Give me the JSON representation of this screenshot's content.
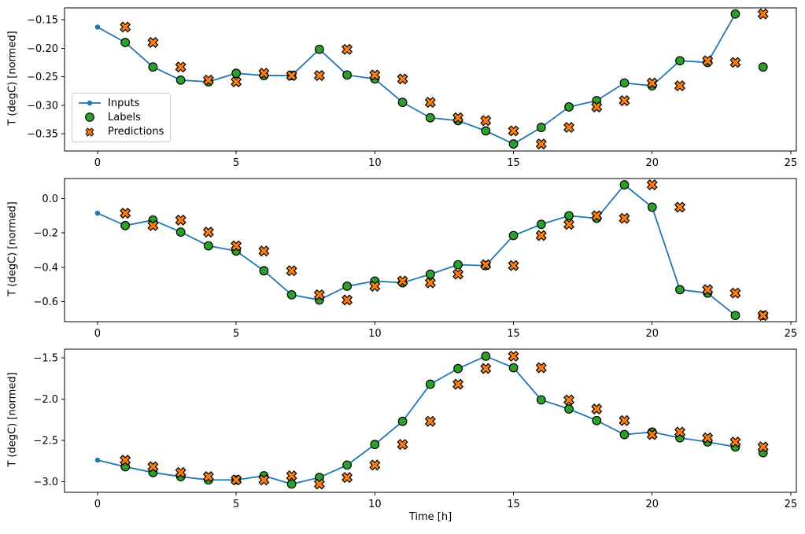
{
  "figure": {
    "background": "#ffffff",
    "xlabel": "Time [h]",
    "xlim": [
      -1.19,
      25.2
    ],
    "x_ticks": [
      0,
      5,
      10,
      15,
      20,
      25
    ],
    "x_tick_labels": [
      "0",
      "5",
      "10",
      "15",
      "20",
      "25"
    ],
    "colors": {
      "inputs": "#1f77b4",
      "labels": "#2ca02c",
      "predictions": "#ff7f0e",
      "marker_edge": "#000000",
      "spine": "#000000",
      "legend_border": "#cccccc"
    },
    "legend": {
      "entries": [
        {
          "label": "Inputs",
          "marker": "line-dot",
          "color": "#1f77b4"
        },
        {
          "label": "Labels",
          "marker": "circle",
          "color": "#2ca02c"
        },
        {
          "label": "Predictions",
          "marker": "x",
          "color": "#ff7f0e"
        }
      ]
    }
  },
  "chart_data": [
    {
      "type": "line",
      "ylabel": "T (degC) [normed]",
      "ylim": [
        -0.3803,
        -0.1293
      ],
      "yticks": [
        -0.15,
        -0.2,
        -0.25,
        -0.3,
        -0.35
      ],
      "ytick_labels": [
        "−0.15",
        "−0.20",
        "−0.25",
        "−0.30",
        "−0.35"
      ],
      "series": [
        {
          "name": "Inputs",
          "kind": "line",
          "marker": "dot",
          "color": "#1f77b4",
          "x": [
            0,
            1,
            2,
            3,
            4,
            5,
            6,
            7,
            8,
            9,
            10,
            11,
            12,
            13,
            14,
            15,
            16,
            17,
            18,
            19,
            20,
            21,
            22,
            23
          ],
          "y": [
            -0.163,
            -0.19,
            -0.233,
            -0.256,
            -0.259,
            -0.244,
            -0.248,
            -0.248,
            -0.202,
            -0.247,
            -0.254,
            -0.295,
            -0.322,
            -0.327,
            -0.345,
            -0.368,
            -0.339,
            -0.303,
            -0.292,
            -0.261,
            -0.266,
            -0.222,
            -0.225,
            -0.14
          ]
        },
        {
          "name": "Labels",
          "kind": "scatter",
          "marker": "circle",
          "color": "#2ca02c",
          "x": [
            1,
            2,
            3,
            4,
            5,
            6,
            7,
            8,
            9,
            10,
            11,
            12,
            13,
            14,
            15,
            16,
            17,
            18,
            19,
            20,
            21,
            22,
            23,
            24
          ],
          "y": [
            -0.19,
            -0.233,
            -0.256,
            -0.259,
            -0.244,
            -0.248,
            -0.248,
            -0.202,
            -0.247,
            -0.254,
            -0.295,
            -0.322,
            -0.327,
            -0.345,
            -0.368,
            -0.339,
            -0.303,
            -0.292,
            -0.261,
            -0.266,
            -0.222,
            -0.225,
            -0.14,
            -0.233
          ]
        },
        {
          "name": "Predictions",
          "kind": "scatter",
          "marker": "X",
          "color": "#ff7f0e",
          "x": [
            1,
            2,
            3,
            4,
            5,
            6,
            7,
            8,
            9,
            10,
            11,
            12,
            13,
            14,
            15,
            16,
            17,
            18,
            19,
            20,
            21,
            22,
            23,
            24
          ],
          "y": [
            -0.163,
            -0.19,
            -0.233,
            -0.256,
            -0.259,
            -0.244,
            -0.248,
            -0.248,
            -0.202,
            -0.247,
            -0.254,
            -0.295,
            -0.322,
            -0.327,
            -0.345,
            -0.368,
            -0.339,
            -0.303,
            -0.292,
            -0.261,
            -0.266,
            -0.222,
            -0.225,
            -0.14
          ]
        }
      ]
    },
    {
      "type": "line",
      "ylabel": "T (degC) [normed]",
      "ylim": [
        -0.7162,
        0.1167
      ],
      "yticks": [
        0.0,
        -0.2,
        -0.4,
        -0.6
      ],
      "ytick_labels": [
        "0.0",
        "−0.2",
        "−0.4",
        "−0.6"
      ],
      "series": [
        {
          "name": "Inputs",
          "kind": "line",
          "marker": "dot",
          "color": "#1f77b4",
          "x": [
            0,
            1,
            2,
            3,
            4,
            5,
            6,
            7,
            8,
            9,
            10,
            11,
            12,
            13,
            14,
            15,
            16,
            17,
            18,
            19,
            20,
            21,
            22,
            23
          ],
          "y": [
            -0.085,
            -0.157,
            -0.125,
            -0.195,
            -0.275,
            -0.305,
            -0.42,
            -0.56,
            -0.59,
            -0.51,
            -0.48,
            -0.49,
            -0.44,
            -0.385,
            -0.39,
            -0.215,
            -0.15,
            -0.1,
            -0.115,
            0.08,
            -0.05,
            -0.53,
            -0.55,
            -0.68
          ]
        },
        {
          "name": "Labels",
          "kind": "scatter",
          "marker": "circle",
          "color": "#2ca02c",
          "x": [
            1,
            2,
            3,
            4,
            5,
            6,
            7,
            8,
            9,
            10,
            11,
            12,
            13,
            14,
            15,
            16,
            17,
            18,
            19,
            20,
            21,
            22,
            23,
            24
          ],
          "y": [
            -0.157,
            -0.125,
            -0.195,
            -0.275,
            -0.305,
            -0.42,
            -0.56,
            -0.59,
            -0.51,
            -0.48,
            -0.49,
            -0.44,
            -0.385,
            -0.39,
            -0.215,
            -0.15,
            -0.1,
            -0.115,
            0.08,
            -0.05,
            -0.53,
            -0.55,
            -0.68,
            -0.68
          ]
        },
        {
          "name": "Predictions",
          "kind": "scatter",
          "marker": "X",
          "color": "#ff7f0e",
          "x": [
            1,
            2,
            3,
            4,
            5,
            6,
            7,
            8,
            9,
            10,
            11,
            12,
            13,
            14,
            15,
            16,
            17,
            18,
            19,
            20,
            21,
            22,
            23,
            24
          ],
          "y": [
            -0.085,
            -0.157,
            -0.125,
            -0.195,
            -0.275,
            -0.305,
            -0.42,
            -0.56,
            -0.59,
            -0.51,
            -0.48,
            -0.49,
            -0.44,
            -0.385,
            -0.39,
            -0.215,
            -0.15,
            -0.1,
            -0.115,
            0.08,
            -0.05,
            -0.53,
            -0.55,
            -0.68
          ]
        }
      ]
    },
    {
      "type": "line",
      "ylabel": "T (degC) [normed]",
      "xlabel": "Time [h]",
      "ylim": [
        -3.1301,
        -1.3951
      ],
      "yticks": [
        -1.5,
        -2.0,
        -2.5,
        -3.0
      ],
      "ytick_labels": [
        "−1.5",
        "−2.0",
        "−2.5",
        "−3.0"
      ],
      "series": [
        {
          "name": "Inputs",
          "kind": "line",
          "marker": "dot",
          "color": "#1f77b4",
          "x": [
            0,
            1,
            2,
            3,
            4,
            5,
            6,
            7,
            8,
            9,
            10,
            11,
            12,
            13,
            14,
            15,
            16,
            17,
            18,
            19,
            20,
            21,
            22,
            23
          ],
          "y": [
            -2.74,
            -2.82,
            -2.89,
            -2.94,
            -2.98,
            -2.98,
            -2.93,
            -3.03,
            -2.95,
            -2.8,
            -2.55,
            -2.27,
            -1.82,
            -1.63,
            -1.48,
            -1.62,
            -2.01,
            -2.12,
            -2.26,
            -2.43,
            -2.4,
            -2.47,
            -2.52,
            -2.58
          ]
        },
        {
          "name": "Labels",
          "kind": "scatter",
          "marker": "circle",
          "color": "#2ca02c",
          "x": [
            1,
            2,
            3,
            4,
            5,
            6,
            7,
            8,
            9,
            10,
            11,
            12,
            13,
            14,
            15,
            16,
            17,
            18,
            19,
            20,
            21,
            22,
            23,
            24
          ],
          "y": [
            -2.82,
            -2.89,
            -2.94,
            -2.98,
            -2.98,
            -2.93,
            -3.03,
            -2.95,
            -2.8,
            -2.55,
            -2.27,
            -1.82,
            -1.63,
            -1.48,
            -1.62,
            -2.01,
            -2.12,
            -2.26,
            -2.43,
            -2.4,
            -2.47,
            -2.52,
            -2.58,
            -2.65
          ]
        },
        {
          "name": "Predictions",
          "kind": "scatter",
          "marker": "X",
          "color": "#ff7f0e",
          "x": [
            1,
            2,
            3,
            4,
            5,
            6,
            7,
            8,
            9,
            10,
            11,
            12,
            13,
            14,
            15,
            16,
            17,
            18,
            19,
            20,
            21,
            22,
            23,
            24
          ],
          "y": [
            -2.74,
            -2.82,
            -2.89,
            -2.94,
            -2.98,
            -2.98,
            -2.93,
            -3.03,
            -2.95,
            -2.8,
            -2.55,
            -2.27,
            -1.82,
            -1.63,
            -1.48,
            -1.62,
            -2.01,
            -2.12,
            -2.26,
            -2.43,
            -2.4,
            -2.47,
            -2.52,
            -2.58
          ]
        }
      ]
    }
  ]
}
